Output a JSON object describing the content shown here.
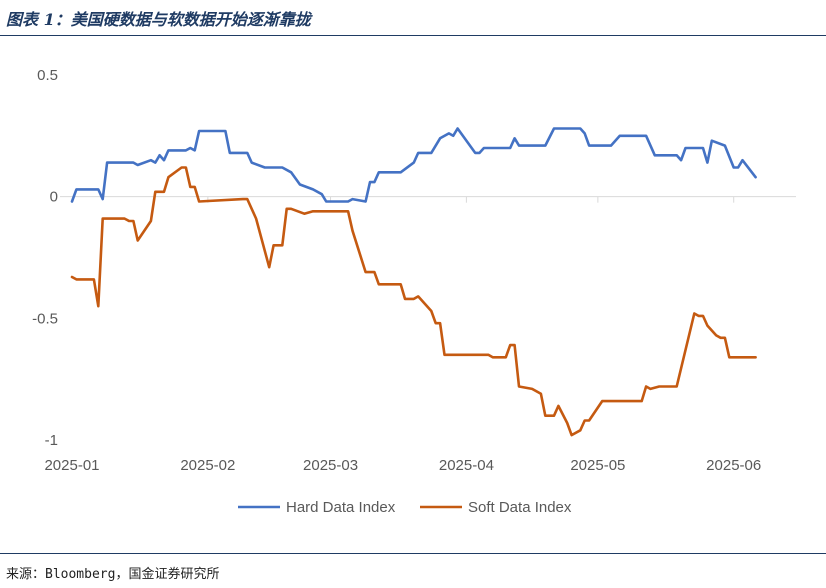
{
  "figure": {
    "title": "图表 1：美国硬数据与软数据开始逐渐靠拢",
    "source": "来源：Bloomberg，国金证券研究所"
  },
  "chart_data": {
    "type": "line",
    "title": "",
    "xlabel": "",
    "ylabel": "",
    "ylim": [
      -1,
      0.5
    ],
    "yticks": [
      {
        "value": 0.5,
        "label": "0.5"
      },
      {
        "value": 0,
        "label": "0"
      },
      {
        "value": -0.5,
        "label": "-0.5"
      },
      {
        "value": -1,
        "label": "-1"
      }
    ],
    "xlim": [
      "2025-01-01",
      "2025-06-07"
    ],
    "xticks": [
      {
        "date": "2025-01-01",
        "label": "2025-01"
      },
      {
        "date": "2025-02-01",
        "label": "2025-02"
      },
      {
        "date": "2025-03-01",
        "label": "2025-03"
      },
      {
        "date": "2025-04-01",
        "label": "2025-04"
      },
      {
        "date": "2025-05-01",
        "label": "2025-05"
      },
      {
        "date": "2025-06-01",
        "label": "2025-06"
      }
    ],
    "grid": false,
    "legend": "bottom",
    "series": [
      {
        "name": "Hard Data Index",
        "color": "#4472C4",
        "points": [
          [
            "2025-01-01",
            -0.02
          ],
          [
            "2025-01-02",
            0.03
          ],
          [
            "2025-01-07",
            0.03
          ],
          [
            "2025-01-08",
            -0.01
          ],
          [
            "2025-01-09",
            0.14
          ],
          [
            "2025-01-15",
            0.14
          ],
          [
            "2025-01-16",
            0.13
          ],
          [
            "2025-01-19",
            0.15
          ],
          [
            "2025-01-20",
            0.14
          ],
          [
            "2025-01-21",
            0.17
          ],
          [
            "2025-01-22",
            0.15
          ],
          [
            "2025-01-23",
            0.19
          ],
          [
            "2025-01-26",
            0.19
          ],
          [
            "2025-01-27",
            0.19
          ],
          [
            "2025-01-28",
            0.2
          ],
          [
            "2025-01-29",
            0.19
          ],
          [
            "2025-01-30",
            0.27
          ],
          [
            "2025-02-05",
            0.27
          ],
          [
            "2025-02-06",
            0.18
          ],
          [
            "2025-02-10",
            0.18
          ],
          [
            "2025-02-11",
            0.14
          ],
          [
            "2025-02-14",
            0.12
          ],
          [
            "2025-02-18",
            0.12
          ],
          [
            "2025-02-20",
            0.1
          ],
          [
            "2025-02-22",
            0.05
          ],
          [
            "2025-02-25",
            0.03
          ],
          [
            "2025-02-27",
            0.01
          ],
          [
            "2025-02-28",
            -0.02
          ],
          [
            "2025-03-05",
            -0.02
          ],
          [
            "2025-03-06",
            -0.01
          ],
          [
            "2025-03-09",
            -0.02
          ],
          [
            "2025-03-10",
            0.06
          ],
          [
            "2025-03-11",
            0.06
          ],
          [
            "2025-03-12",
            0.1
          ],
          [
            "2025-03-17",
            0.1
          ],
          [
            "2025-03-20",
            0.14
          ],
          [
            "2025-03-21",
            0.18
          ],
          [
            "2025-03-24",
            0.18
          ],
          [
            "2025-03-26",
            0.24
          ],
          [
            "2025-03-28",
            0.26
          ],
          [
            "2025-03-29",
            0.25
          ],
          [
            "2025-03-30",
            0.28
          ],
          [
            "2025-04-03",
            0.18
          ],
          [
            "2025-04-04",
            0.18
          ],
          [
            "2025-04-05",
            0.2
          ],
          [
            "2025-04-11",
            0.2
          ],
          [
            "2025-04-12",
            0.24
          ],
          [
            "2025-04-13",
            0.21
          ],
          [
            "2025-04-19",
            0.21
          ],
          [
            "2025-04-21",
            0.28
          ],
          [
            "2025-04-27",
            0.28
          ],
          [
            "2025-04-28",
            0.26
          ],
          [
            "2025-04-29",
            0.21
          ],
          [
            "2025-05-04",
            0.21
          ],
          [
            "2025-05-06",
            0.25
          ],
          [
            "2025-05-12",
            0.25
          ],
          [
            "2025-05-14",
            0.17
          ],
          [
            "2025-05-19",
            0.17
          ],
          [
            "2025-05-20",
            0.15
          ],
          [
            "2025-05-21",
            0.2
          ],
          [
            "2025-05-25",
            0.2
          ],
          [
            "2025-05-26",
            0.14
          ],
          [
            "2025-05-27",
            0.23
          ],
          [
            "2025-05-30",
            0.21
          ],
          [
            "2025-06-01",
            0.12
          ],
          [
            "2025-06-02",
            0.12
          ],
          [
            "2025-06-03",
            0.15
          ],
          [
            "2025-06-06",
            0.08
          ]
        ]
      },
      {
        "name": "Soft Data Index",
        "color": "#C55A11",
        "points": [
          [
            "2025-01-01",
            -0.33
          ],
          [
            "2025-01-02",
            -0.34
          ],
          [
            "2025-01-06",
            -0.34
          ],
          [
            "2025-01-07",
            -0.45
          ],
          [
            "2025-01-08",
            -0.09
          ],
          [
            "2025-01-13",
            -0.09
          ],
          [
            "2025-01-14",
            -0.1
          ],
          [
            "2025-01-15",
            -0.1
          ],
          [
            "2025-01-16",
            -0.18
          ],
          [
            "2025-01-19",
            -0.1
          ],
          [
            "2025-01-20",
            0.02
          ],
          [
            "2025-01-22",
            0.02
          ],
          [
            "2025-01-23",
            0.08
          ],
          [
            "2025-01-26",
            0.12
          ],
          [
            "2025-01-27",
            0.12
          ],
          [
            "2025-01-28",
            0.04
          ],
          [
            "2025-01-29",
            0.04
          ],
          [
            "2025-01-30",
            -0.02
          ],
          [
            "2025-02-09",
            -0.01
          ],
          [
            "2025-02-10",
            -0.01
          ],
          [
            "2025-02-12",
            -0.09
          ],
          [
            "2025-02-15",
            -0.29
          ],
          [
            "2025-02-16",
            -0.2
          ],
          [
            "2025-02-18",
            -0.2
          ],
          [
            "2025-02-19",
            -0.05
          ],
          [
            "2025-02-20",
            -0.05
          ],
          [
            "2025-02-23",
            -0.07
          ],
          [
            "2025-02-25",
            -0.06
          ],
          [
            "2025-03-05",
            -0.06
          ],
          [
            "2025-03-06",
            -0.14
          ],
          [
            "2025-03-09",
            -0.31
          ],
          [
            "2025-03-11",
            -0.31
          ],
          [
            "2025-03-12",
            -0.36
          ],
          [
            "2025-03-17",
            -0.36
          ],
          [
            "2025-03-18",
            -0.42
          ],
          [
            "2025-03-20",
            -0.42
          ],
          [
            "2025-03-21",
            -0.41
          ],
          [
            "2025-03-24",
            -0.47
          ],
          [
            "2025-03-25",
            -0.52
          ],
          [
            "2025-03-26",
            -0.52
          ],
          [
            "2025-03-27",
            -0.65
          ],
          [
            "2025-04-06",
            -0.65
          ],
          [
            "2025-04-07",
            -0.66
          ],
          [
            "2025-04-10",
            -0.66
          ],
          [
            "2025-04-11",
            -0.61
          ],
          [
            "2025-04-12",
            -0.61
          ],
          [
            "2025-04-13",
            -0.78
          ],
          [
            "2025-04-16",
            -0.79
          ],
          [
            "2025-04-18",
            -0.81
          ],
          [
            "2025-04-19",
            -0.9
          ],
          [
            "2025-04-21",
            -0.9
          ],
          [
            "2025-04-22",
            -0.86
          ],
          [
            "2025-04-24",
            -0.93
          ],
          [
            "2025-04-25",
            -0.98
          ],
          [
            "2025-04-27",
            -0.96
          ],
          [
            "2025-04-28",
            -0.92
          ],
          [
            "2025-04-29",
            -0.92
          ],
          [
            "2025-05-02",
            -0.84
          ],
          [
            "2025-05-11",
            -0.84
          ],
          [
            "2025-05-12",
            -0.78
          ],
          [
            "2025-05-13",
            -0.79
          ],
          [
            "2025-05-15",
            -0.78
          ],
          [
            "2025-05-19",
            -0.78
          ],
          [
            "2025-05-23",
            -0.48
          ],
          [
            "2025-05-24",
            -0.49
          ],
          [
            "2025-05-25",
            -0.49
          ],
          [
            "2025-05-26",
            -0.53
          ],
          [
            "2025-05-28",
            -0.57
          ],
          [
            "2025-05-29",
            -0.58
          ],
          [
            "2025-05-30",
            -0.58
          ],
          [
            "2025-05-31",
            -0.66
          ],
          [
            "2025-06-06",
            -0.66
          ]
        ]
      }
    ]
  }
}
